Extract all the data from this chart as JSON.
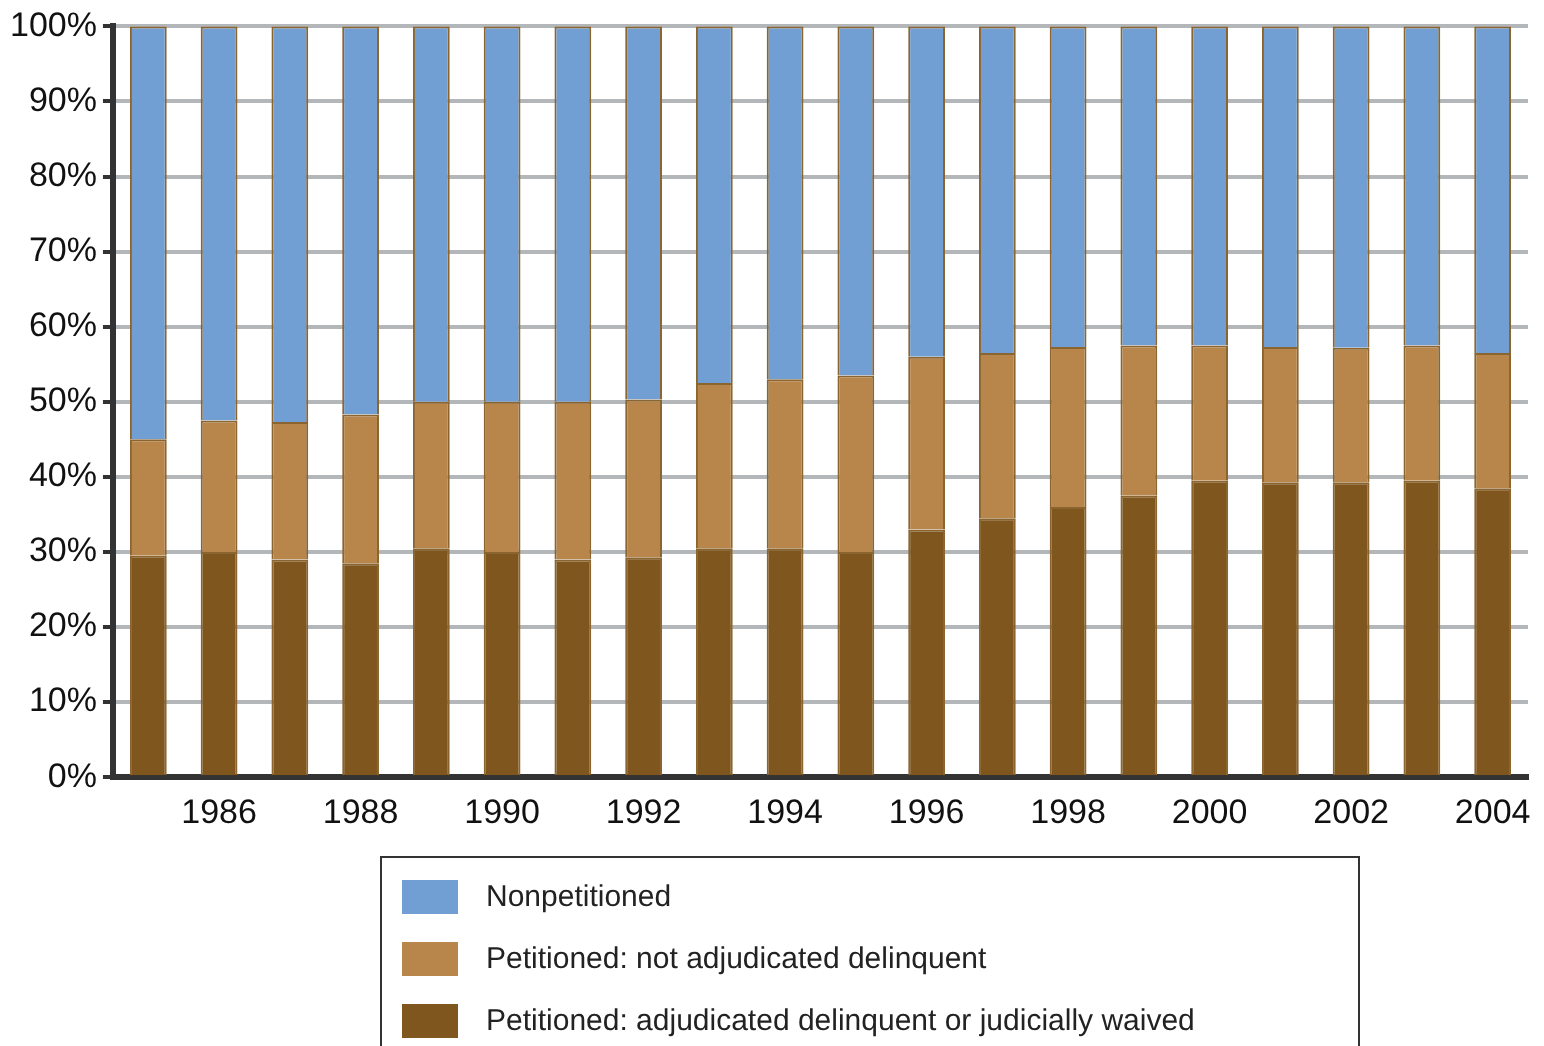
{
  "chart_data": {
    "type": "bar",
    "stacked": true,
    "categories": [
      null,
      "1986",
      null,
      "1988",
      null,
      "1990",
      null,
      "1992",
      null,
      "1994",
      null,
      "1996",
      null,
      "1998",
      null,
      "2000",
      null,
      "2002",
      null,
      "2004"
    ],
    "series": [
      {
        "name": "Petitioned: adjudicated delinquent or judicially waived",
        "color": "#7f561d",
        "values": [
          29.5,
          30,
          29,
          28.5,
          30.5,
          30,
          29,
          29.3,
          30.5,
          30.5,
          30,
          33,
          34.5,
          36,
          37.5,
          39.5,
          39.3,
          39.3,
          39.5,
          38.5
        ]
      },
      {
        "name": "Petitioned: not adjudicated delinquent",
        "color": "#b8864b",
        "values": [
          15.5,
          17.5,
          18.3,
          19.8,
          19.5,
          20,
          21,
          21,
          22,
          22.5,
          23.5,
          23,
          22,
          21.3,
          20,
          18,
          18,
          17.9,
          18,
          18
        ]
      },
      {
        "name": "Nonpetitioned",
        "color": "#729fd3",
        "values": [
          55,
          52.5,
          52.7,
          51.7,
          50,
          50,
          50,
          49.7,
          47.5,
          47,
          46.5,
          44,
          43.5,
          42.7,
          42.5,
          42.5,
          42.7,
          42.8,
          42.5,
          43.5
        ]
      }
    ],
    "ylim": [
      0,
      100
    ],
    "yticks": [
      {
        "value": 0,
        "label": "0%"
      },
      {
        "value": 10,
        "label": "10%"
      },
      {
        "value": 20,
        "label": "20%"
      },
      {
        "value": 30,
        "label": "30%"
      },
      {
        "value": 40,
        "label": "40%"
      },
      {
        "value": 50,
        "label": "50%"
      },
      {
        "value": 60,
        "label": "60%"
      },
      {
        "value": 70,
        "label": "70%"
      },
      {
        "value": 80,
        "label": "80%"
      },
      {
        "value": 90,
        "label": "90%"
      },
      {
        "value": 100,
        "label": "100%"
      }
    ],
    "grid": "y",
    "legend": "bottom"
  }
}
